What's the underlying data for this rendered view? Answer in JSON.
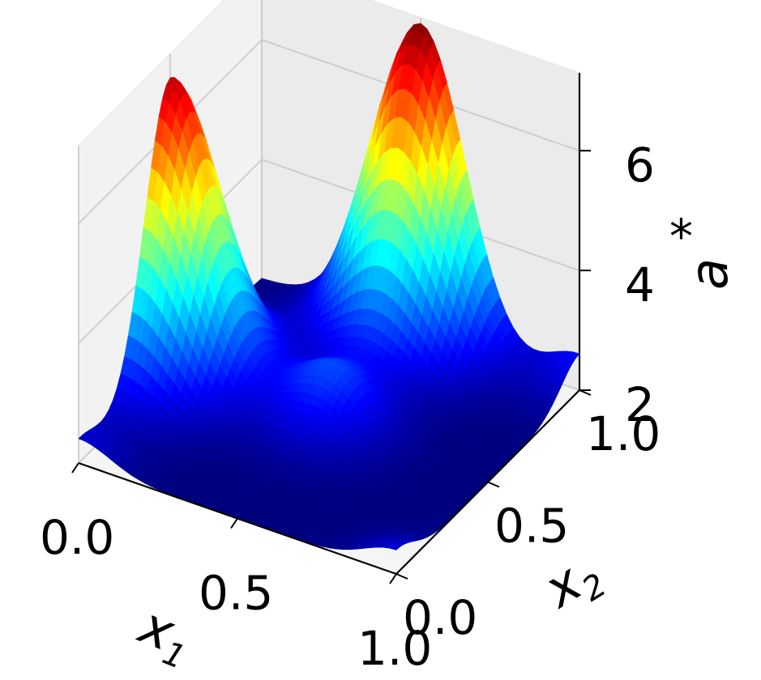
{
  "chart_data": {
    "type": "surface",
    "title": "",
    "x": {
      "label_base": "x",
      "label_sub": "1",
      "range": [
        0,
        1
      ],
      "ticks": [
        0.0,
        0.5,
        1.0
      ],
      "tick_labels": [
        "0.0",
        "0.5",
        "1.0"
      ]
    },
    "y": {
      "label_base": "x",
      "label_sub": "2",
      "range": [
        0,
        1
      ],
      "ticks": [
        0.0,
        0.5,
        1.0
      ],
      "tick_labels": [
        "0.0",
        "0.5",
        "1.0"
      ]
    },
    "z": {
      "label_base": "a",
      "label_sup": "*",
      "range": [
        2,
        7.3
      ],
      "ticks": [
        2,
        4,
        6
      ],
      "tick_labels": [
        "2",
        "4",
        "6"
      ]
    },
    "grid": true,
    "colormap": "jet",
    "colormap_stops": [
      "#00007f",
      "#0000ff",
      "#007fff",
      "#00ffff",
      "#7fff7f",
      "#ffff00",
      "#ff7f00",
      "#ff0000",
      "#7f0000"
    ],
    "surface": {
      "description_peaks": [
        {
          "x1": 0.0,
          "x2": 0.5,
          "a": 6.9
        },
        {
          "x1": 0.5,
          "x2": 1.0,
          "a": 7.2
        },
        {
          "x1": 0.0,
          "x2": 0.0,
          "a": 2.4
        },
        {
          "x1": 1.0,
          "x2": 0.0,
          "a": 2.4
        },
        {
          "x1": 1.0,
          "x2": 1.0,
          "a": 2.6
        }
      ],
      "minimum": 2.0
    }
  }
}
